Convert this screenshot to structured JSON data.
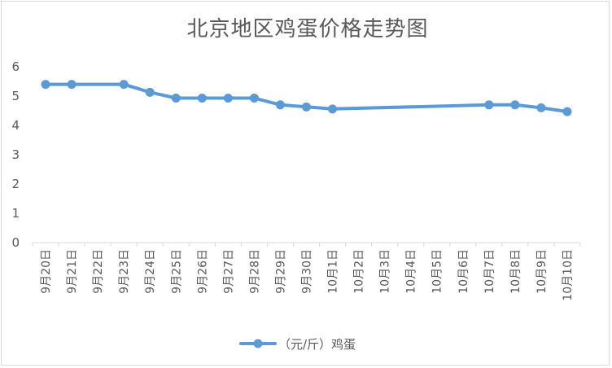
{
  "chart_data": {
    "type": "line",
    "title": "北京地区鸡蛋价格走势图",
    "xlabel": "",
    "ylabel": "",
    "ylim": [
      0,
      6
    ],
    "yticks": [
      0,
      1,
      2,
      3,
      4,
      5,
      6
    ],
    "grid": false,
    "legend_position": "bottom",
    "categories": [
      "9月20日",
      "9月21日",
      "9月22日",
      "9月23日",
      "9月24日",
      "9月25日",
      "9月26日",
      "9月27日",
      "9月28日",
      "9月29日",
      "9月30日",
      "10月1日",
      "10月2日",
      "10月3日",
      "10月4日",
      "10月5日",
      "10月6日",
      "10月7日",
      "10月8日",
      "10月9日",
      "10月10日"
    ],
    "series": [
      {
        "name": "（元/斤）鸡蛋",
        "color": "#5b9bd5",
        "values": [
          5.4,
          5.4,
          null,
          5.4,
          5.13,
          4.93,
          4.93,
          4.93,
          4.93,
          4.7,
          4.63,
          4.56,
          null,
          null,
          null,
          null,
          null,
          4.7,
          4.7,
          4.6,
          4.47
        ]
      }
    ]
  }
}
